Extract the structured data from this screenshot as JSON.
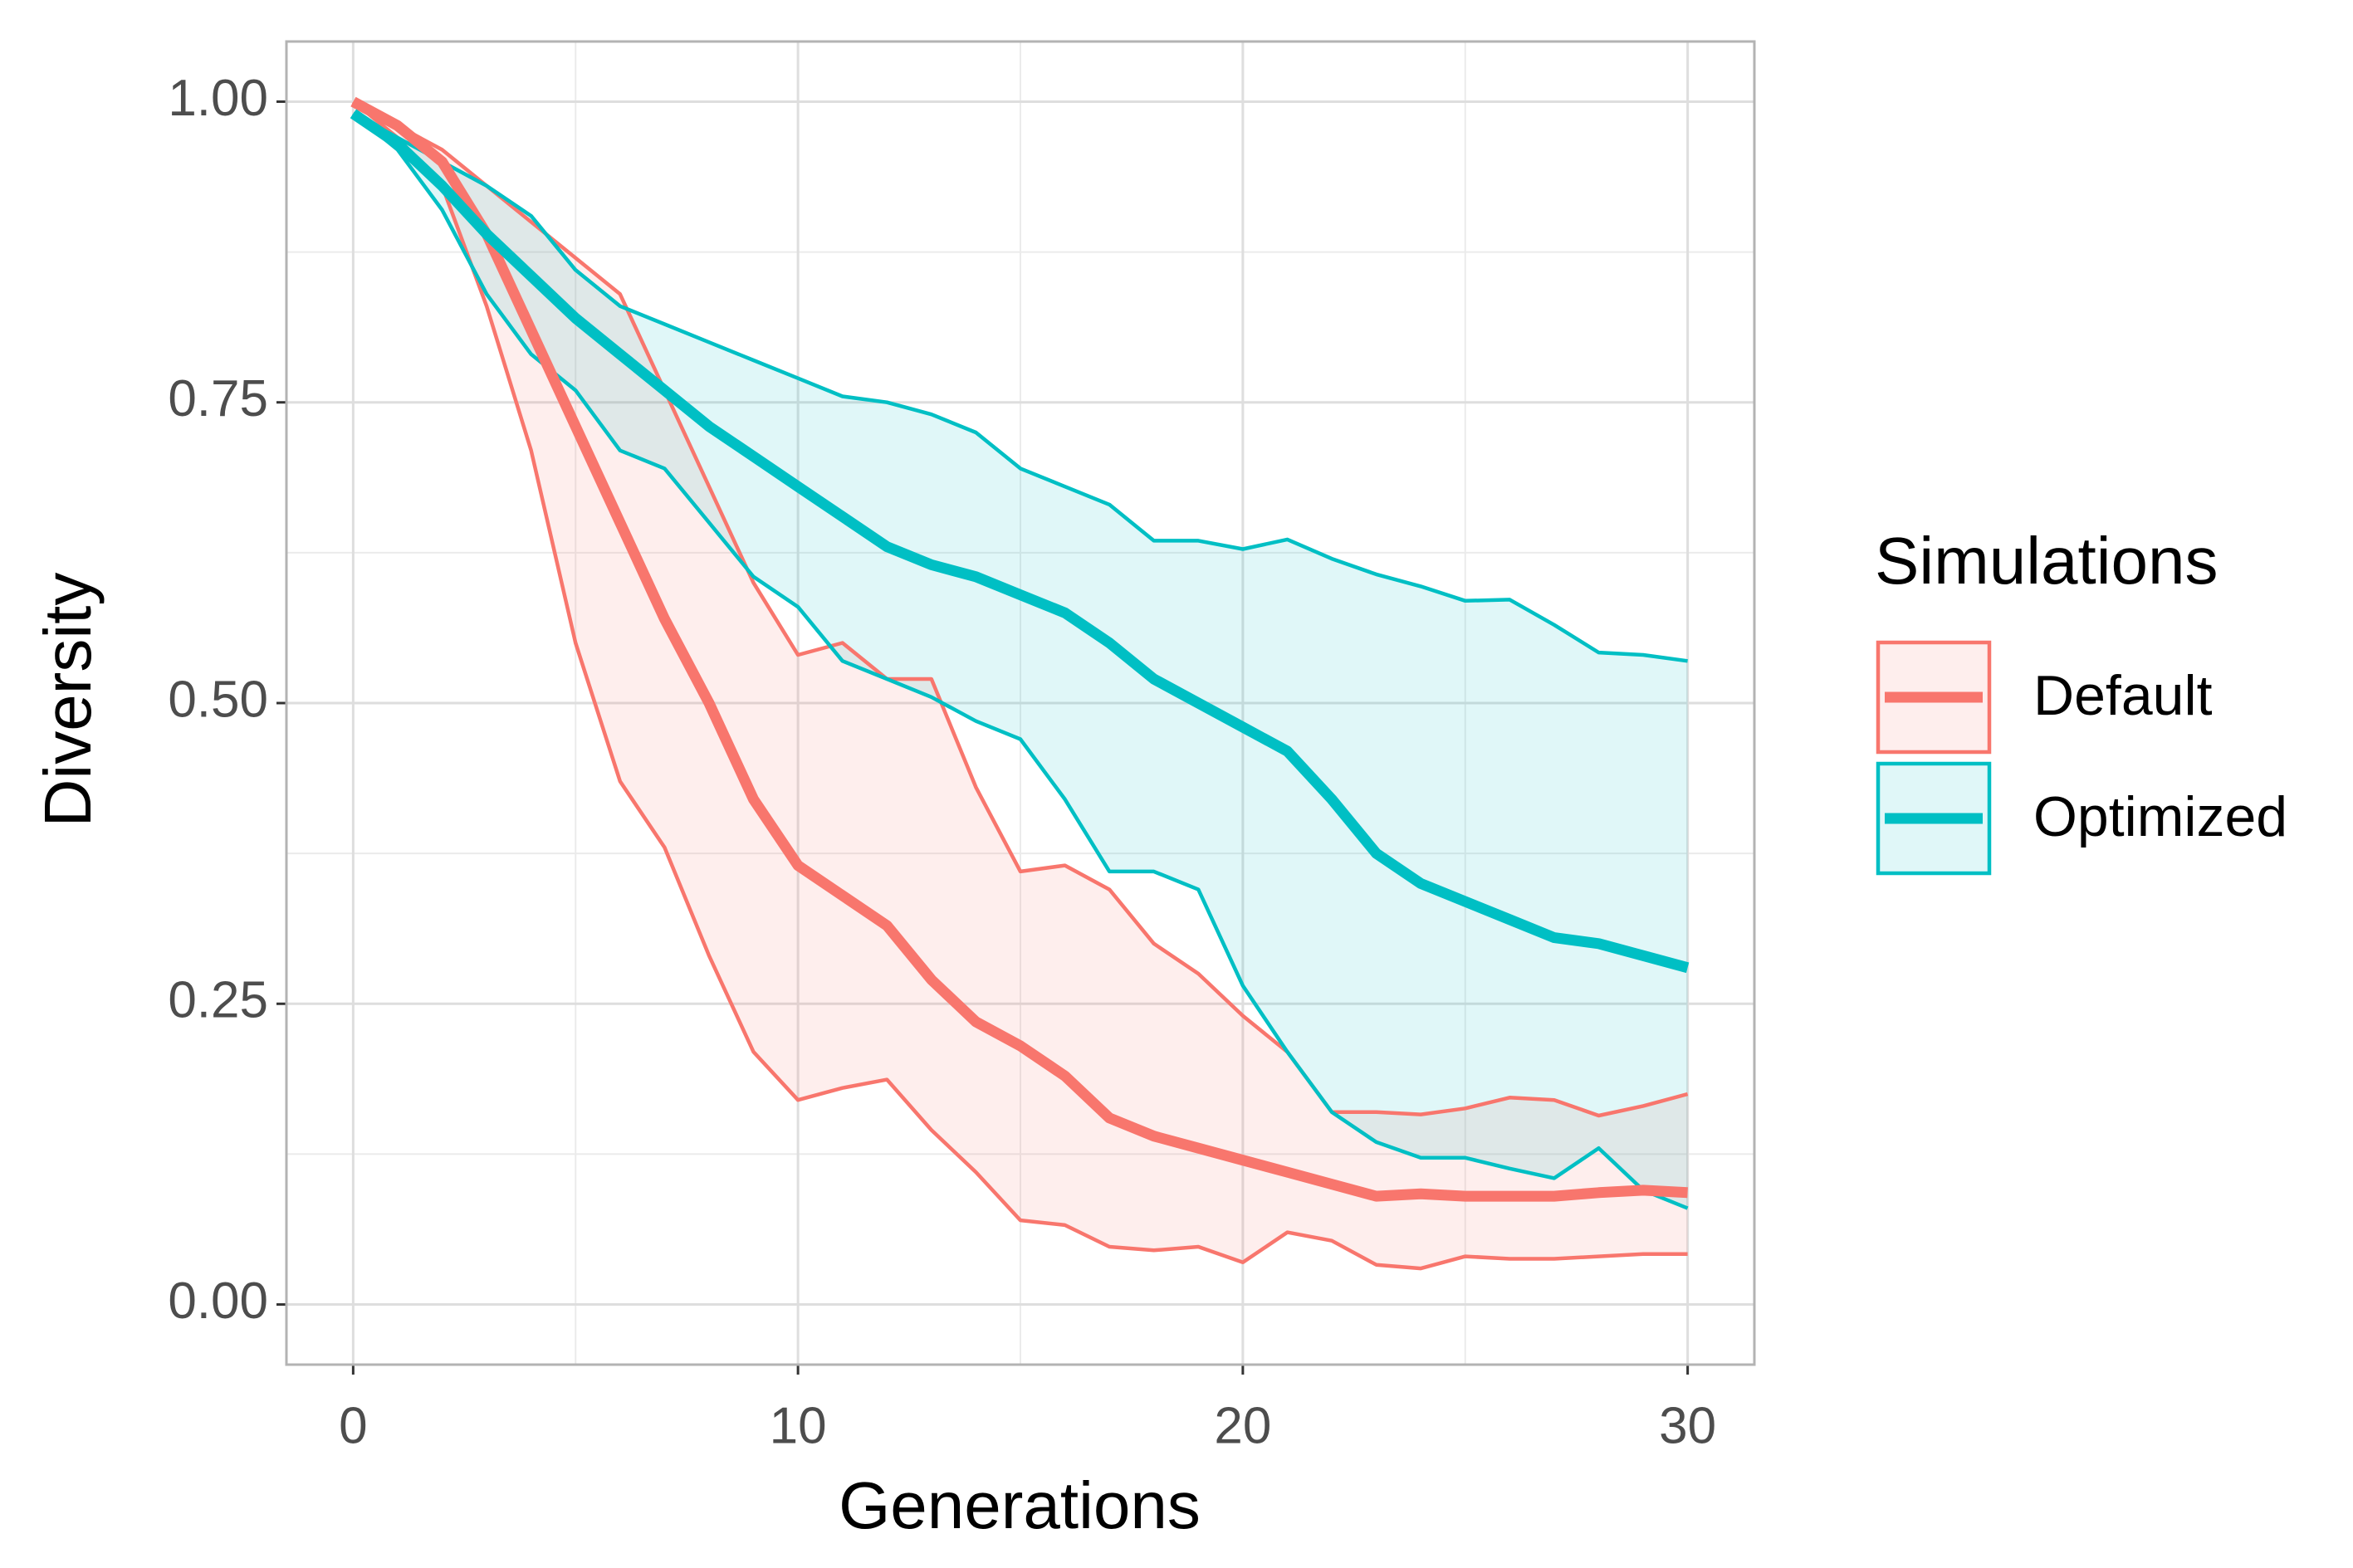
{
  "chart_data": {
    "type": "line-ribbon",
    "x_label": "Generations",
    "y_label": "Diversity",
    "legend_title": "Simulations",
    "legend_position": "right",
    "grid": true,
    "x": [
      0,
      1,
      2,
      3,
      4,
      5,
      6,
      7,
      8,
      9,
      10,
      11,
      12,
      13,
      14,
      15,
      16,
      17,
      18,
      19,
      20,
      21,
      22,
      23,
      24,
      25,
      26,
      27,
      28,
      29,
      30
    ],
    "xlim": [
      -1.5,
      31.5
    ],
    "xticks": [
      0,
      10,
      20,
      30
    ],
    "xminor": [
      5,
      15,
      25
    ],
    "ylim": [
      -0.05,
      1.05
    ],
    "yticks": [
      {
        "value": 0,
        "label": "0.00"
      },
      0.25,
      {
        "value": 0.5,
        "label": "0.50"
      },
      0.75,
      {
        "value": 1,
        "label": "1.00"
      }
    ],
    "yminor": [
      0.125,
      0.375,
      0.625,
      0.875
    ],
    "series": [
      {
        "name": "Default",
        "color": "#F8766D",
        "values": [
          1.0,
          0.98,
          0.95,
          0.89,
          0.81,
          0.73,
          0.65,
          0.57,
          0.5,
          0.42,
          0.365,
          0.34,
          0.315,
          0.27,
          0.235,
          0.215,
          0.19,
          0.155,
          0.14,
          0.13,
          0.12,
          0.11,
          0.1,
          0.09,
          0.092,
          0.09,
          0.09,
          0.09,
          0.093,
          0.095,
          0.093
        ],
        "upper": [
          1.0,
          0.98,
          0.96,
          0.93,
          0.9,
          0.87,
          0.84,
          0.76,
          0.68,
          0.6,
          0.54,
          0.55,
          0.52,
          0.52,
          0.43,
          0.36,
          0.365,
          0.345,
          0.3,
          0.275,
          0.24,
          0.21,
          0.16,
          0.16,
          0.158,
          0.163,
          0.172,
          0.17,
          0.157,
          0.165,
          0.175
        ],
        "lower": [
          1.0,
          0.97,
          0.93,
          0.83,
          0.71,
          0.55,
          0.435,
          0.38,
          0.29,
          0.21,
          0.17,
          0.18,
          0.187,
          0.145,
          0.11,
          0.07,
          0.066,
          0.048,
          0.045,
          0.048,
          0.035,
          0.06,
          0.053,
          0.033,
          0.03,
          0.04,
          0.038,
          0.038,
          0.04,
          0.042,
          0.042
        ]
      },
      {
        "name": "Optimized",
        "color": "#00BFC4",
        "values": [
          0.99,
          0.965,
          0.93,
          0.89,
          0.855,
          0.82,
          0.79,
          0.76,
          0.73,
          0.705,
          0.68,
          0.655,
          0.63,
          0.615,
          0.605,
          0.59,
          0.575,
          0.55,
          0.52,
          0.5,
          0.48,
          0.46,
          0.42,
          0.375,
          0.35,
          0.335,
          0.32,
          0.305,
          0.3,
          0.29,
          0.28
        ],
        "upper": [
          0.99,
          0.97,
          0.95,
          0.93,
          0.905,
          0.86,
          0.83,
          0.815,
          0.8,
          0.785,
          0.77,
          0.755,
          0.75,
          0.74,
          0.725,
          0.695,
          0.68,
          0.665,
          0.635,
          0.635,
          0.628,
          0.636,
          0.62,
          0.607,
          0.597,
          0.585,
          0.586,
          0.565,
          0.542,
          0.54,
          0.535
        ],
        "lower": [
          0.99,
          0.96,
          0.91,
          0.84,
          0.79,
          0.76,
          0.71,
          0.695,
          0.65,
          0.605,
          0.58,
          0.535,
          0.52,
          0.505,
          0.485,
          0.47,
          0.42,
          0.36,
          0.36,
          0.345,
          0.265,
          0.21,
          0.16,
          0.135,
          0.122,
          0.122,
          0.113,
          0.105,
          0.13,
          0.095,
          0.08
        ]
      }
    ]
  }
}
